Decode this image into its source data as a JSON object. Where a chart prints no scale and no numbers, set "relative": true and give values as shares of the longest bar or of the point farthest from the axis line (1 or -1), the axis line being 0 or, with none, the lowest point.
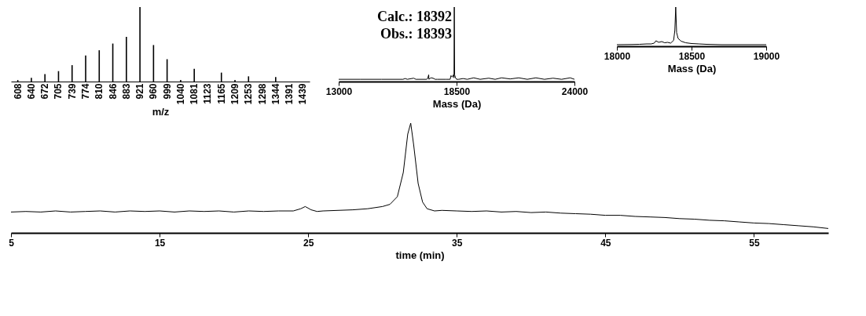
{
  "chart_data": [
    {
      "type": "bar",
      "relative": true,
      "xlabel": "m/z",
      "grid": false,
      "color": "#000000",
      "categories": [
        "608",
        "640",
        "672",
        "705",
        "739",
        "774",
        "810",
        "846",
        "883",
        "921",
        "960",
        "999",
        "1040",
        "1081",
        "1123",
        "1165",
        "1209",
        "1253",
        "1298",
        "1344",
        "1391",
        "1439"
      ],
      "values": [
        0.02,
        0.05,
        0.1,
        0.14,
        0.22,
        0.35,
        0.42,
        0.51,
        0.6,
        1,
        0.49,
        0.3,
        0.02,
        0.17,
        null,
        0.12,
        0.02,
        0.07,
        null,
        0.06,
        null,
        null
      ]
    },
    {
      "type": "line",
      "relative": true,
      "xlabel": "Mass (Da)",
      "grid": false,
      "color": "#000000",
      "xlim": [
        13000,
        24000
      ],
      "xticks": [
        13000,
        18500,
        24000
      ],
      "annotations": [
        "Calc.: 18392",
        "Obs.: 18393"
      ],
      "x": [
        13000,
        14000,
        15000,
        16000,
        16100,
        16200,
        16500,
        16600,
        17100,
        17150,
        17200,
        17210,
        17300,
        17400,
        17500,
        17600,
        18000,
        18200,
        18240,
        18300,
        18350,
        18380,
        18393,
        18410,
        18450,
        18500,
        18600,
        18800,
        19000,
        19300,
        19600,
        20000,
        20300,
        20600,
        21000,
        21400,
        21800,
        22200,
        22600,
        23000,
        23400,
        23800,
        24000
      ],
      "values": [
        0.03,
        0.03,
        0.03,
        0.03,
        0.04,
        0.03,
        0.045,
        0.03,
        0.03,
        0.04,
        0.09,
        0.03,
        0.05,
        0.045,
        0.03,
        0.03,
        0.03,
        0.03,
        0.08,
        0.06,
        0.09,
        0.05,
        1,
        0.09,
        0.05,
        0.03,
        0.03,
        0.04,
        0.03,
        0.05,
        0.03,
        0.045,
        0.03,
        0.05,
        0.035,
        0.05,
        0.03,
        0.05,
        0.03,
        0.045,
        0.03,
        0.05,
        0.03
      ]
    },
    {
      "type": "line",
      "relative": true,
      "xlabel": "Mass (Da)",
      "grid": false,
      "color": "#000000",
      "xlim": [
        18000,
        19000
      ],
      "xticks": [
        18000,
        18500,
        19000
      ],
      "x": [
        18000,
        18100,
        18150,
        18200,
        18230,
        18250,
        18262,
        18280,
        18300,
        18320,
        18340,
        18360,
        18380,
        18388,
        18394,
        18400,
        18410,
        18430,
        18460,
        18500,
        18550,
        18600,
        18700,
        18800,
        19000
      ],
      "values": [
        0.04,
        0.045,
        0.05,
        0.06,
        0.06,
        0.08,
        0.14,
        0.1,
        0.12,
        0.09,
        0.1,
        0.08,
        0.15,
        0.4,
        1,
        0.35,
        0.2,
        0.13,
        0.09,
        0.07,
        0.06,
        0.05,
        0.04,
        0.04,
        0.04
      ]
    },
    {
      "type": "line",
      "relative": true,
      "xlabel": "time (min)",
      "grid": false,
      "color": "#000000",
      "xlim": [
        5,
        60
      ],
      "xticks": [
        5,
        15,
        25,
        35,
        45,
        55
      ],
      "x": [
        5,
        6,
        7,
        8,
        9,
        10,
        11,
        12,
        13,
        14,
        15,
        16,
        17,
        18,
        19,
        20,
        21,
        22,
        23,
        24,
        24.5,
        24.8,
        25.2,
        25.6,
        26,
        27,
        28,
        29,
        30,
        30.5,
        31,
        31.4,
        31.7,
        31.9,
        32.1,
        32.4,
        32.7,
        33,
        33.5,
        34,
        35,
        36,
        37,
        38,
        39,
        40,
        41,
        42,
        43,
        44,
        45,
        46,
        47,
        48,
        49,
        50,
        51,
        52,
        53,
        54,
        55,
        56,
        57,
        58,
        59,
        60
      ],
      "values": [
        0.19,
        0.195,
        0.19,
        0.2,
        0.19,
        0.195,
        0.2,
        0.19,
        0.2,
        0.195,
        0.2,
        0.19,
        0.2,
        0.195,
        0.2,
        0.19,
        0.2,
        0.195,
        0.2,
        0.2,
        0.22,
        0.24,
        0.21,
        0.195,
        0.2,
        0.205,
        0.21,
        0.22,
        0.24,
        0.26,
        0.33,
        0.55,
        0.9,
        1,
        0.8,
        0.45,
        0.28,
        0.22,
        0.2,
        0.205,
        0.2,
        0.195,
        0.2,
        0.19,
        0.195,
        0.185,
        0.19,
        0.18,
        0.175,
        0.17,
        0.16,
        0.16,
        0.15,
        0.145,
        0.14,
        0.13,
        0.125,
        0.115,
        0.11,
        0.1,
        0.09,
        0.085,
        0.075,
        0.065,
        0.055,
        0.04
      ]
    }
  ]
}
